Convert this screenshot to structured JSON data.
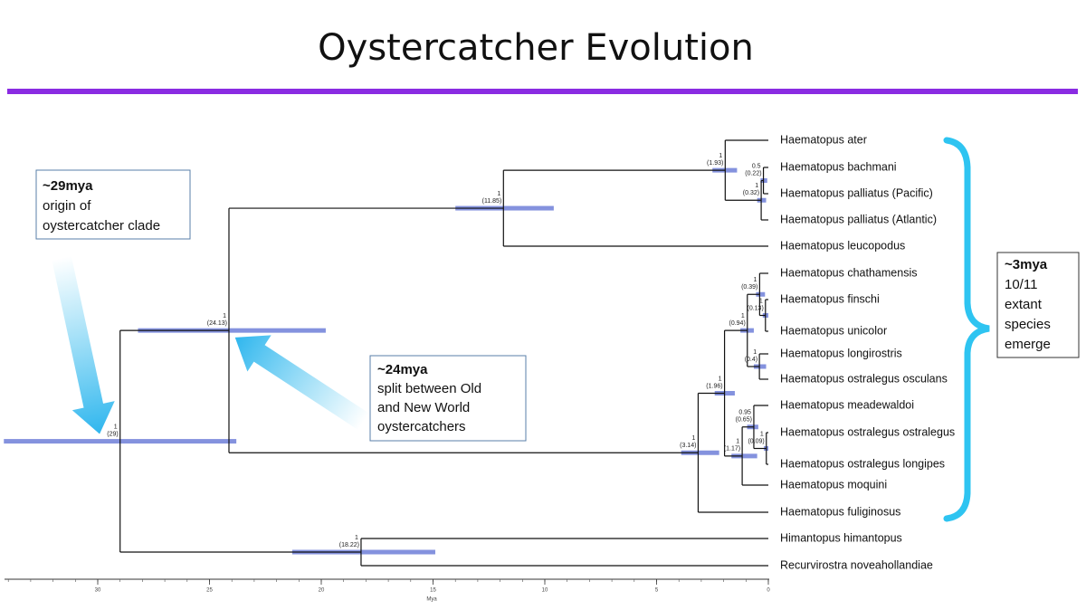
{
  "title": "Oystercatcher Evolution",
  "annotations": [
    {
      "heading": "~29mya",
      "lines": [
        "origin of",
        "oystercatcher clade"
      ]
    },
    {
      "heading": "~24mya",
      "lines": [
        "split between Old",
        "and New World",
        "oystercatchers"
      ]
    },
    {
      "heading": "~3mya",
      "lines": [
        "10/11",
        "extant",
        "species",
        "emerge"
      ]
    }
  ],
  "axis": {
    "label": "Mya",
    "ticks": [
      30,
      25,
      20,
      15,
      10,
      5,
      0
    ]
  },
  "tree": {
    "support": 1,
    "age": {
      "value": 29,
      "label": "(29)"
    },
    "hpd": [
      34.2,
      23.8
    ],
    "children": [
      {
        "support": 1,
        "age": {
          "value": 24.13,
          "label": "(24.13)"
        },
        "hpd": [
          28.2,
          19.8
        ],
        "children": [
          {
            "support": 1,
            "age": {
              "value": 11.85,
              "label": "(11.85)"
            },
            "hpd": [
              14.0,
              9.6
            ],
            "children": [
              {
                "support": 1,
                "age": {
                  "value": 1.93,
                  "label": "(1.93)"
                },
                "hpd": [
                  2.5,
                  1.4
                ],
                "children": [
                  {
                    "label": "Haematopus ater"
                  },
                  {
                    "support": 1,
                    "age": {
                      "value": 0.32,
                      "label": "(0.32)"
                    },
                    "hpd": [
                      0.5,
                      0.1
                    ],
                    "children": [
                      {
                        "support": 0.5,
                        "age": {
                          "value": 0.22,
                          "label": "(0.22)"
                        },
                        "hpd": [
                          0.35,
                          0.05
                        ],
                        "children": [
                          {
                            "label": "Haematopus bachmani"
                          },
                          {
                            "label": "Haematopus palliatus (Pacific)"
                          }
                        ]
                      },
                      {
                        "label": "Haematopus palliatus (Atlantic)"
                      }
                    ]
                  }
                ]
              },
              {
                "label": "Haematopus leucopodus"
              }
            ]
          },
          {
            "support": 1,
            "age": {
              "value": 3.14,
              "label": "(3.14)"
            },
            "hpd": [
              3.9,
              2.2
            ],
            "children": [
              {
                "support": 1,
                "age": {
                  "value": 1.96,
                  "label": "(1.96)"
                },
                "hpd": [
                  2.4,
                  1.5
                ],
                "children": [
                  {
                    "support": 1,
                    "age": {
                      "value": 0.94,
                      "label": "(0.94)"
                    },
                    "hpd": [
                      1.25,
                      0.65
                    ],
                    "children": [
                      {
                        "support": 1,
                        "age": {
                          "value": 0.39,
                          "label": "(0.39)"
                        },
                        "hpd": [
                          0.55,
                          0.15
                        ],
                        "children": [
                          {
                            "label": "Haematopus chathamensis"
                          },
                          {
                            "support": 1,
                            "age": {
                              "value": 0.13,
                              "label": "(0.13)"
                            },
                            "hpd": [
                              0.25,
                              0.0
                            ],
                            "children": [
                              {
                                "label": "Haematopus finschi"
                              },
                              {
                                "label": "Haematopus unicolor"
                              }
                            ]
                          }
                        ]
                      },
                      {
                        "support": 1,
                        "age": {
                          "value": 0.4,
                          "label": "(0.4)"
                        },
                        "hpd": [
                          0.65,
                          0.1
                        ],
                        "children": [
                          {
                            "label": "Haematopus longirostris"
                          },
                          {
                            "label": "Haematopus ostralegus osculans"
                          }
                        ]
                      }
                    ]
                  },
                  {
                    "support": 1,
                    "age": {
                      "value": 1.17,
                      "label": "(1.17)"
                    },
                    "hpd": [
                      1.65,
                      0.5
                    ],
                    "children": [
                      {
                        "support": 0.95,
                        "age": {
                          "value": 0.65,
                          "label": "(0.65)"
                        },
                        "hpd": [
                          0.95,
                          0.45
                        ],
                        "children": [
                          {
                            "label": "Haematopus meadewaldoi"
                          },
                          {
                            "support": 1,
                            "age": {
                              "value": 0.09,
                              "label": "(0.09)"
                            },
                            "hpd": [
                              0.2,
                              0.0
                            ],
                            "children": [
                              {
                                "label": "Haematopus ostralegus ostralegus"
                              },
                              {
                                "label": "Haematopus ostralegus longipes"
                              }
                            ]
                          }
                        ]
                      },
                      {
                        "label": "Haematopus moquini"
                      }
                    ]
                  }
                ]
              },
              {
                "label": "Haematopus fuliginosus"
              }
            ]
          }
        ]
      },
      {
        "support": 1,
        "age": {
          "value": 18.22,
          "label": "(18.22)"
        },
        "hpd": [
          21.3,
          14.9
        ],
        "children": [
          {
            "label": "Himantopus himantopus"
          },
          {
            "label": "Recurvirostra noveahollandiae"
          }
        ]
      }
    ]
  }
}
